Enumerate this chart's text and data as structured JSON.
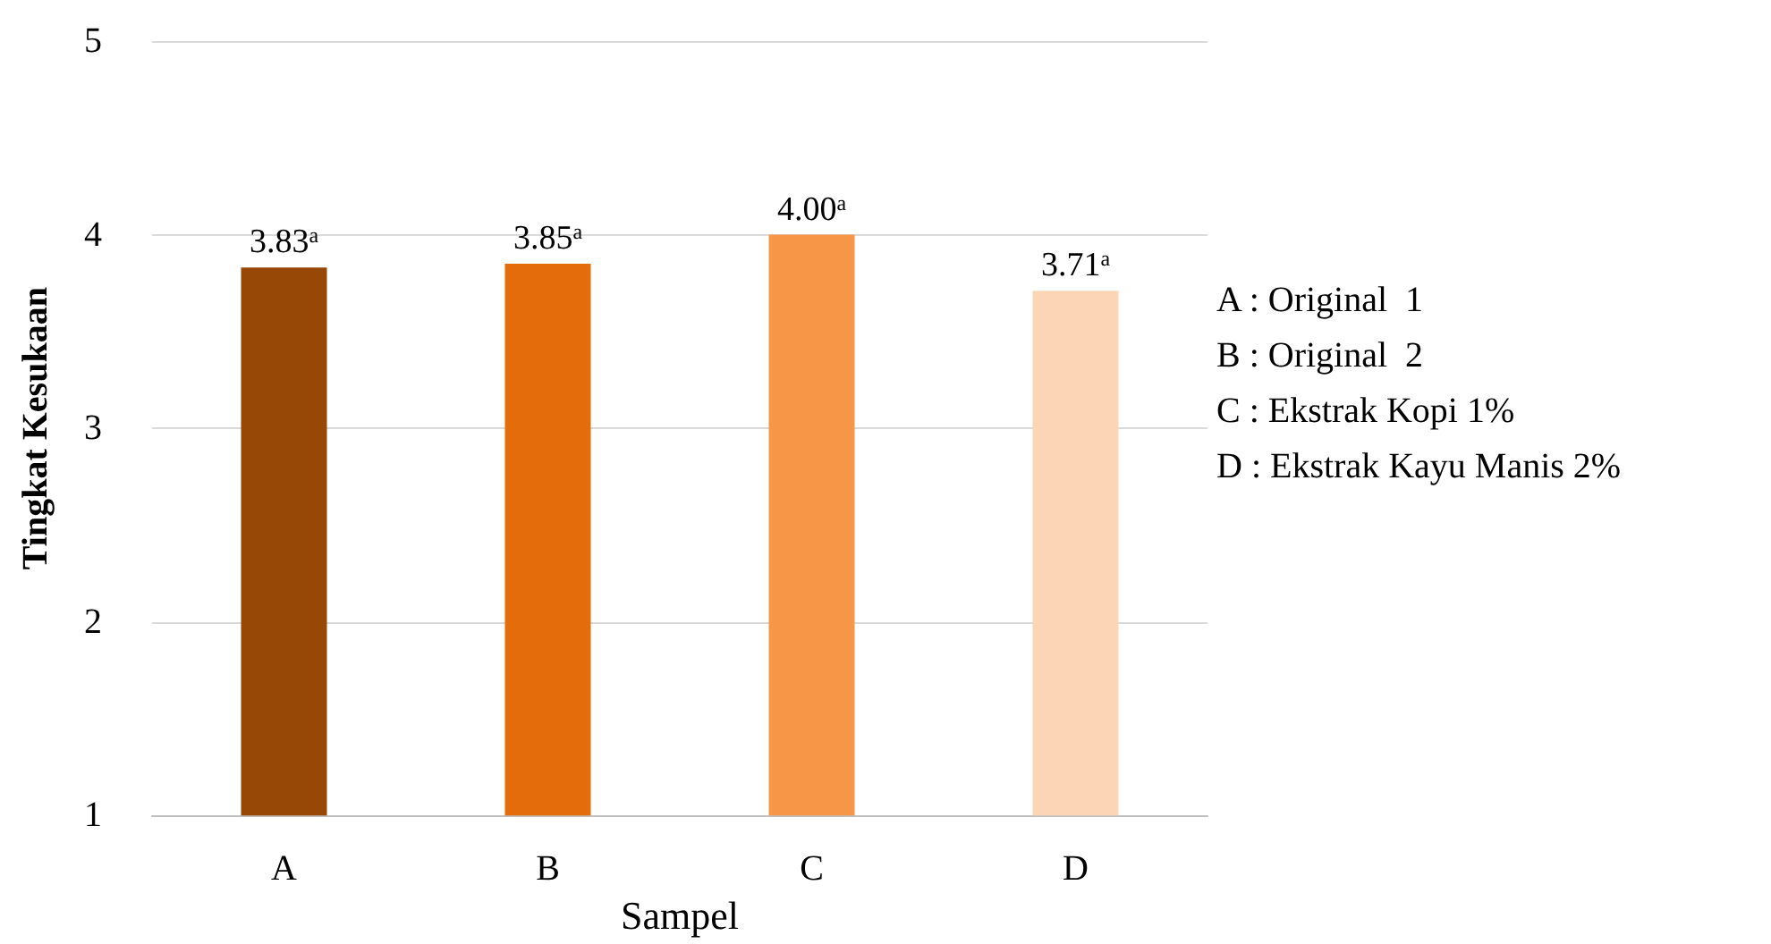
{
  "chart_data": {
    "type": "bar",
    "xlabel": "Sampel",
    "ylabel": "Tingkat Kesukaan",
    "categories": [
      "A",
      "B",
      "C",
      "D"
    ],
    "values": [
      3.83,
      3.85,
      4.0,
      3.71
    ],
    "colors": [
      "#974706",
      "#e46c0a",
      "#f79646",
      "#fbd5b5"
    ],
    "value_labels": [
      "3.83$^{a}$",
      "3.85$^{a}$",
      "4.00$^{a}$",
      "3.71$^{a}$"
    ],
    "ylim": [
      1,
      5
    ],
    "yticks": [
      1,
      2,
      3,
      4,
      5
    ],
    "grid": "y",
    "annotations": [
      "A : Original  1",
      "B : Original  2",
      "C : Ekstrak Kopi 1%",
      "D : Ekstrak Kayu Manis 2%"
    ]
  }
}
